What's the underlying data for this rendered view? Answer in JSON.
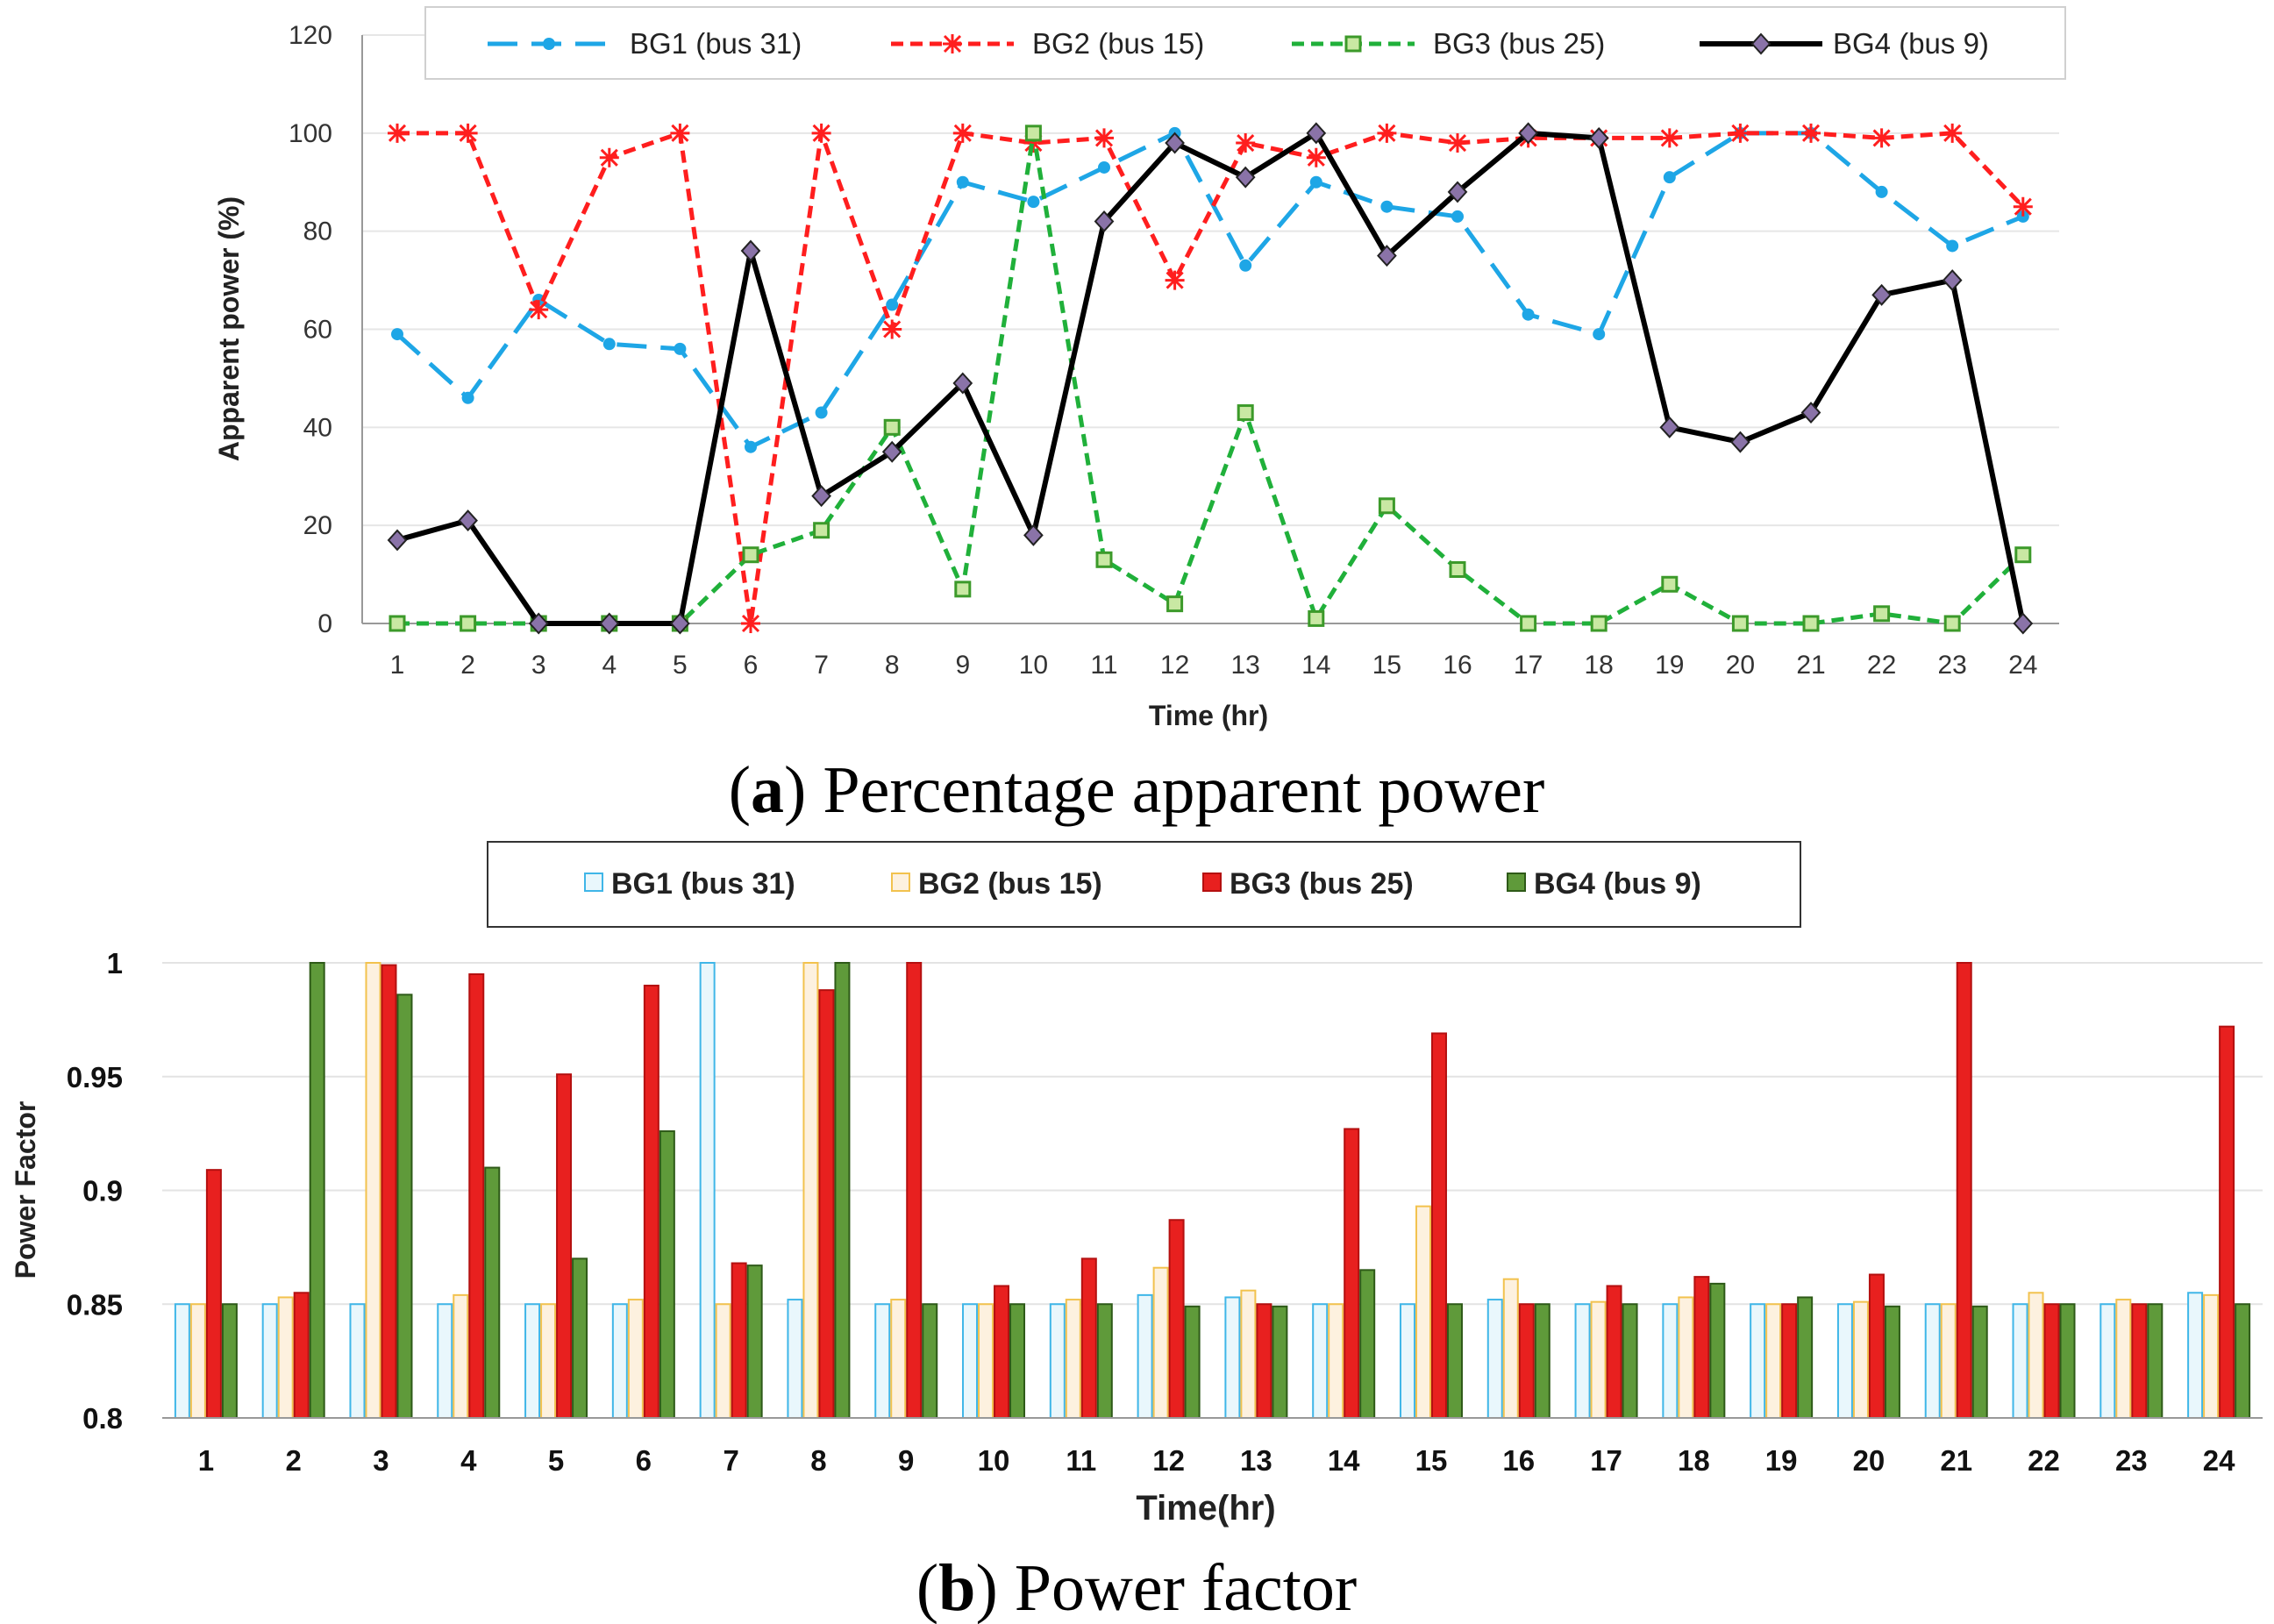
{
  "chart_data": [
    {
      "type": "line",
      "title": "",
      "caption_prefix": "(",
      "caption_letter": "a",
      "caption_text": ") Percentage apparent power",
      "xlabel": "Time (hr)",
      "ylabel": "Apparent power (%)",
      "ylim": [
        0,
        120
      ],
      "yticks": [
        "0",
        "20",
        "40",
        "60",
        "80",
        "100",
        "120"
      ],
      "categories": [
        "1",
        "2",
        "3",
        "4",
        "5",
        "6",
        "7",
        "8",
        "9",
        "10",
        "11",
        "12",
        "13",
        "14",
        "15",
        "16",
        "17",
        "18",
        "19",
        "20",
        "21",
        "22",
        "23",
        "24"
      ],
      "series": [
        {
          "name": "BG1 (bus 31)",
          "color": "#1ea6e6",
          "values": [
            59,
            46,
            66,
            57,
            56,
            36,
            43,
            65,
            90,
            86,
            93,
            100,
            73,
            90,
            85,
            83,
            63,
            59,
            91,
            100,
            100,
            88,
            77,
            83
          ]
        },
        {
          "name": "BG2 (bus 15)",
          "color": "#ff1e1e",
          "values": [
            100,
            100,
            64,
            95,
            100,
            0,
            100,
            60,
            100,
            98,
            99,
            70,
            98,
            95,
            100,
            98,
            99,
            99,
            99,
            100,
            100,
            99,
            100,
            85
          ]
        },
        {
          "name": "BG3 (bus 25)",
          "color": "#20b03a",
          "values": [
            0,
            0,
            0,
            0,
            0,
            14,
            19,
            40,
            7,
            100,
            13,
            4,
            43,
            1,
            24,
            11,
            0,
            0,
            8,
            0,
            0,
            2,
            0,
            14
          ]
        },
        {
          "name": "BG4 (bus 9)",
          "color": "#000000",
          "values": [
            17,
            21,
            0,
            0,
            0,
            76,
            26,
            35,
            49,
            18,
            82,
            98,
            91,
            100,
            75,
            88,
            100,
            99,
            40,
            37,
            43,
            67,
            70,
            0
          ]
        }
      ],
      "legend": "top"
    },
    {
      "type": "bar",
      "title": "",
      "caption_prefix": "(",
      "caption_letter": "b",
      "caption_text": ") Power factor",
      "xlabel": "Time(hr)",
      "ylabel": "Power Factor",
      "ylim": [
        0.8,
        1.0
      ],
      "yticks": [
        "0.8",
        "0.85",
        "0.9",
        "0.95",
        "1"
      ],
      "categories": [
        "1",
        "2",
        "3",
        "4",
        "5",
        "6",
        "7",
        "8",
        "9",
        "10",
        "11",
        "12",
        "13",
        "14",
        "15",
        "16",
        "17",
        "18",
        "19",
        "20",
        "21",
        "22",
        "23",
        "24"
      ],
      "series": [
        {
          "name": "BG1 (bus 31)",
          "fill": "#e9f7fc",
          "stroke": "#3fb6e8",
          "values": [
            0.85,
            0.85,
            0.85,
            0.85,
            0.85,
            0.85,
            1.0,
            0.852,
            0.85,
            0.85,
            0.85,
            0.854,
            0.853,
            0.85,
            0.85,
            0.852,
            0.85,
            0.85,
            0.85,
            0.85,
            0.85,
            0.85,
            0.85,
            0.855
          ]
        },
        {
          "name": "BG2 (bus 15)",
          "fill": "#fdf1df",
          "stroke": "#f2c24e",
          "values": [
            0.85,
            0.853,
            1.0,
            0.854,
            0.85,
            0.852,
            0.85,
            1.0,
            0.852,
            0.85,
            0.852,
            0.866,
            0.856,
            0.85,
            0.893,
            0.861,
            0.851,
            0.853,
            0.85,
            0.851,
            0.85,
            0.855,
            0.852,
            0.854
          ]
        },
        {
          "name": "BG3 (bus 25)",
          "fill": "#e8201f",
          "stroke": "#b41010",
          "values": [
            0.909,
            0.855,
            0.999,
            0.995,
            0.951,
            0.99,
            0.868,
            0.988,
            1.0,
            0.858,
            0.87,
            0.887,
            0.85,
            0.927,
            0.969,
            0.85,
            0.858,
            0.862,
            0.85,
            0.863,
            1.0,
            0.85,
            0.85,
            0.972
          ]
        },
        {
          "name": "BG4 (bus 9)",
          "fill": "#5f9a3a",
          "stroke": "#2e5a18",
          "values": [
            0.85,
            1.0,
            0.986,
            0.91,
            0.87,
            0.926,
            0.867,
            1.0,
            0.85,
            0.85,
            0.85,
            0.849,
            0.849,
            0.865,
            0.85,
            0.85,
            0.85,
            0.859,
            0.853,
            0.849,
            0.849,
            0.85,
            0.85,
            0.85
          ]
        }
      ],
      "legend": "top"
    }
  ]
}
